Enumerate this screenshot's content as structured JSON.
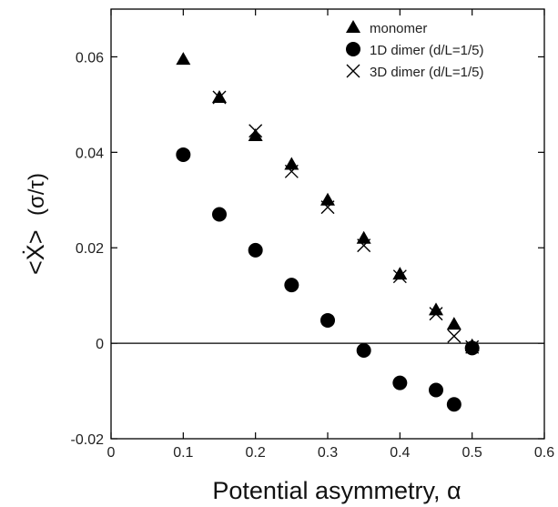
{
  "chart_data": {
    "type": "scatter",
    "xlabel": "Potential asymmetry, α",
    "ylabel_main": "<Ẋ>",
    "ylabel_unit": "(σ/τ)",
    "xlim": [
      0,
      0.6
    ],
    "ylim": [
      -0.02,
      0.07
    ],
    "xticks": [
      0,
      0.1,
      0.2,
      0.3,
      0.4,
      0.5,
      0.6
    ],
    "xtick_labels": [
      "0",
      "0.1",
      "0.2",
      "0.3",
      "0.4",
      "0.5",
      "0.6"
    ],
    "yticks": [
      -0.02,
      0,
      0.02,
      0.04,
      0.06
    ],
    "ytick_labels": [
      "-0.02",
      "0",
      "0.02",
      "0.04",
      "0.06"
    ],
    "zero_line": true,
    "grid": false,
    "legend_position": "top-right",
    "series": [
      {
        "name": "monomer",
        "marker": "triangle",
        "color": "#000000",
        "x": [
          0.1,
          0.15,
          0.2,
          0.25,
          0.3,
          0.35,
          0.4,
          0.45,
          0.475,
          0.5
        ],
        "y": [
          0.0595,
          0.0515,
          0.0435,
          0.0375,
          0.03,
          0.022,
          0.0145,
          0.007,
          0.004,
          -0.0005
        ]
      },
      {
        "name": "1D dimer (d/L=1/5)",
        "marker": "circle",
        "color": "#000000",
        "x": [
          0.1,
          0.15,
          0.2,
          0.25,
          0.3,
          0.35,
          0.4,
          0.45,
          0.475,
          0.5
        ],
        "y": [
          0.0395,
          0.027,
          0.0195,
          0.0122,
          0.0048,
          -0.0015,
          -0.0083,
          -0.0098,
          -0.0128,
          -0.001
        ]
      },
      {
        "name": "3D dimer (d/L=1/5)",
        "marker": "cross",
        "color": "#000000",
        "x": [
          0.15,
          0.2,
          0.25,
          0.3,
          0.35,
          0.4,
          0.45,
          0.475,
          0.5
        ],
        "y": [
          0.0515,
          0.0445,
          0.036,
          0.0285,
          0.0205,
          0.014,
          0.0062,
          0.0015,
          -0.0008
        ]
      }
    ]
  }
}
